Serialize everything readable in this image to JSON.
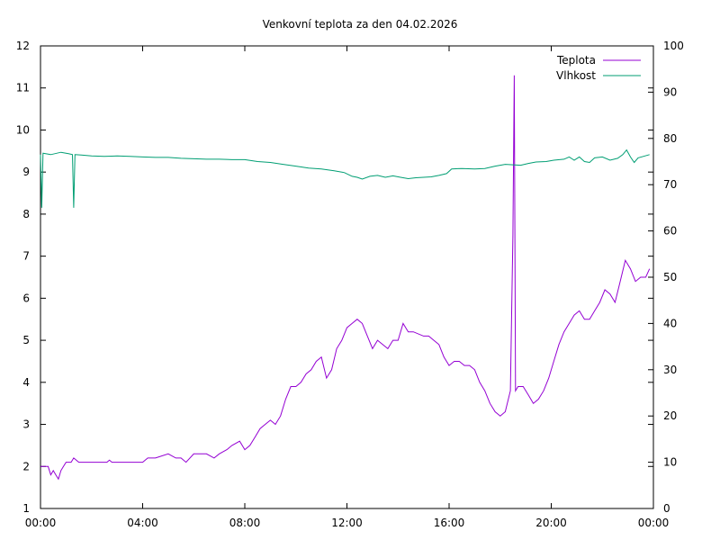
{
  "chart_data": {
    "type": "line",
    "title": "Venkovní teplota za den 04.02.2026",
    "xlabel": "",
    "ylabel": "",
    "y2label": "",
    "x_ticks": [
      "00:00",
      "04:00",
      "08:00",
      "12:00",
      "16:00",
      "20:00",
      "00:00"
    ],
    "xlim_hours": [
      0,
      24
    ],
    "ylim": [
      1,
      12
    ],
    "y_ticks": [
      1,
      2,
      3,
      4,
      5,
      6,
      7,
      8,
      9,
      10,
      11,
      12
    ],
    "y2lim": [
      0,
      100
    ],
    "y2_ticks": [
      0,
      10,
      20,
      30,
      40,
      50,
      60,
      70,
      80,
      90,
      100
    ],
    "grid": false,
    "legend_position": "top-right",
    "series": [
      {
        "name": "Teplota",
        "axis": "left",
        "color": "#9400d3",
        "points": [
          [
            0,
            2.0
          ],
          [
            0.3,
            2.0
          ],
          [
            0.4,
            1.8
          ],
          [
            0.5,
            1.9
          ],
          [
            0.6,
            1.8
          ],
          [
            0.7,
            1.7
          ],
          [
            0.8,
            1.9
          ],
          [
            0.9,
            2.0
          ],
          [
            1.0,
            2.1
          ],
          [
            1.2,
            2.1
          ],
          [
            1.3,
            2.2
          ],
          [
            1.5,
            2.1
          ],
          [
            2.0,
            2.1
          ],
          [
            2.6,
            2.1
          ],
          [
            2.7,
            2.15
          ],
          [
            2.8,
            2.1
          ],
          [
            3.0,
            2.1
          ],
          [
            3.5,
            2.1
          ],
          [
            4.0,
            2.1
          ],
          [
            4.2,
            2.2
          ],
          [
            4.5,
            2.2
          ],
          [
            5.0,
            2.3
          ],
          [
            5.3,
            2.2
          ],
          [
            5.5,
            2.2
          ],
          [
            5.7,
            2.1
          ],
          [
            6.0,
            2.3
          ],
          [
            6.5,
            2.3
          ],
          [
            6.8,
            2.2
          ],
          [
            7.0,
            2.3
          ],
          [
            7.3,
            2.4
          ],
          [
            7.5,
            2.5
          ],
          [
            7.8,
            2.6
          ],
          [
            8.0,
            2.4
          ],
          [
            8.2,
            2.5
          ],
          [
            8.4,
            2.7
          ],
          [
            8.6,
            2.9
          ],
          [
            8.8,
            3.0
          ],
          [
            9.0,
            3.1
          ],
          [
            9.2,
            3.0
          ],
          [
            9.4,
            3.2
          ],
          [
            9.6,
            3.6
          ],
          [
            9.8,
            3.9
          ],
          [
            10.0,
            3.9
          ],
          [
            10.2,
            4.0
          ],
          [
            10.4,
            4.2
          ],
          [
            10.6,
            4.3
          ],
          [
            10.8,
            4.5
          ],
          [
            11.0,
            4.6
          ],
          [
            11.2,
            4.1
          ],
          [
            11.4,
            4.3
          ],
          [
            11.6,
            4.8
          ],
          [
            11.8,
            5.0
          ],
          [
            12.0,
            5.3
          ],
          [
            12.2,
            5.4
          ],
          [
            12.4,
            5.5
          ],
          [
            12.6,
            5.4
          ],
          [
            12.8,
            5.1
          ],
          [
            13.0,
            4.8
          ],
          [
            13.2,
            5.0
          ],
          [
            13.4,
            4.9
          ],
          [
            13.6,
            4.8
          ],
          [
            13.8,
            5.0
          ],
          [
            14.0,
            5.0
          ],
          [
            14.2,
            5.4
          ],
          [
            14.4,
            5.2
          ],
          [
            14.6,
            5.2
          ],
          [
            15.0,
            5.1
          ],
          [
            15.2,
            5.1
          ],
          [
            15.4,
            5.0
          ],
          [
            15.6,
            4.9
          ],
          [
            15.8,
            4.6
          ],
          [
            16.0,
            4.4
          ],
          [
            16.2,
            4.5
          ],
          [
            16.4,
            4.5
          ],
          [
            16.6,
            4.4
          ],
          [
            16.8,
            4.4
          ],
          [
            17.0,
            4.3
          ],
          [
            17.2,
            4.0
          ],
          [
            17.4,
            3.8
          ],
          [
            17.6,
            3.5
          ],
          [
            17.8,
            3.3
          ],
          [
            18.0,
            3.2
          ],
          [
            18.2,
            3.3
          ],
          [
            18.4,
            3.8
          ],
          [
            18.5,
            7.5
          ],
          [
            18.55,
            11.3
          ],
          [
            18.6,
            3.8
          ],
          [
            18.7,
            3.9
          ],
          [
            18.9,
            3.9
          ],
          [
            19.1,
            3.7
          ],
          [
            19.3,
            3.5
          ],
          [
            19.5,
            3.6
          ],
          [
            19.7,
            3.8
          ],
          [
            19.9,
            4.1
          ],
          [
            20.1,
            4.5
          ],
          [
            20.3,
            4.9
          ],
          [
            20.5,
            5.2
          ],
          [
            20.7,
            5.4
          ],
          [
            20.9,
            5.6
          ],
          [
            21.1,
            5.7
          ],
          [
            21.3,
            5.5
          ],
          [
            21.5,
            5.5
          ],
          [
            21.7,
            5.7
          ],
          [
            21.9,
            5.9
          ],
          [
            22.1,
            6.2
          ],
          [
            22.3,
            6.1
          ],
          [
            22.5,
            5.9
          ],
          [
            22.7,
            6.4
          ],
          [
            22.9,
            6.9
          ],
          [
            23.1,
            6.7
          ],
          [
            23.3,
            6.4
          ],
          [
            23.5,
            6.5
          ],
          [
            23.7,
            6.5
          ],
          [
            23.85,
            6.7
          ]
        ]
      },
      {
        "name": "Vlhkost",
        "axis": "right",
        "color": "#009e73",
        "points": [
          [
            0,
            76.5
          ],
          [
            0.05,
            65.0
          ],
          [
            0.1,
            76.8
          ],
          [
            0.4,
            76.5
          ],
          [
            0.8,
            77.0
          ],
          [
            1.1,
            76.7
          ],
          [
            1.25,
            76.5
          ],
          [
            1.3,
            65.0
          ],
          [
            1.35,
            76.5
          ],
          [
            1.6,
            76.4
          ],
          [
            2.0,
            76.2
          ],
          [
            2.5,
            76.1
          ],
          [
            3.0,
            76.2
          ],
          [
            3.5,
            76.1
          ],
          [
            4.0,
            76.0
          ],
          [
            4.5,
            75.9
          ],
          [
            5.0,
            75.9
          ],
          [
            5.5,
            75.7
          ],
          [
            6.0,
            75.6
          ],
          [
            6.5,
            75.5
          ],
          [
            7.0,
            75.5
          ],
          [
            7.5,
            75.4
          ],
          [
            8.0,
            75.4
          ],
          [
            8.5,
            75.0
          ],
          [
            9.0,
            74.8
          ],
          [
            9.5,
            74.4
          ],
          [
            10.0,
            74.0
          ],
          [
            10.5,
            73.6
          ],
          [
            11.0,
            73.4
          ],
          [
            11.5,
            73.0
          ],
          [
            11.9,
            72.6
          ],
          [
            12.2,
            71.8
          ],
          [
            12.4,
            71.6
          ],
          [
            12.6,
            71.2
          ],
          [
            12.9,
            71.8
          ],
          [
            13.2,
            72.0
          ],
          [
            13.5,
            71.6
          ],
          [
            13.8,
            71.9
          ],
          [
            14.1,
            71.6
          ],
          [
            14.4,
            71.3
          ],
          [
            14.7,
            71.5
          ],
          [
            15.0,
            71.6
          ],
          [
            15.3,
            71.7
          ],
          [
            15.6,
            72.0
          ],
          [
            15.9,
            72.4
          ],
          [
            16.1,
            73.4
          ],
          [
            16.5,
            73.5
          ],
          [
            17.0,
            73.4
          ],
          [
            17.4,
            73.5
          ],
          [
            17.8,
            74.0
          ],
          [
            18.2,
            74.4
          ],
          [
            18.5,
            74.3
          ],
          [
            18.8,
            74.2
          ],
          [
            19.1,
            74.6
          ],
          [
            19.4,
            74.9
          ],
          [
            19.8,
            75.0
          ],
          [
            20.1,
            75.3
          ],
          [
            20.5,
            75.5
          ],
          [
            20.7,
            76.0
          ],
          [
            20.9,
            75.3
          ],
          [
            21.1,
            76.0
          ],
          [
            21.3,
            75.0
          ],
          [
            21.5,
            74.8
          ],
          [
            21.7,
            75.8
          ],
          [
            22.0,
            76.0
          ],
          [
            22.3,
            75.3
          ],
          [
            22.6,
            75.7
          ],
          [
            22.8,
            76.5
          ],
          [
            22.95,
            77.5
          ],
          [
            23.1,
            76.0
          ],
          [
            23.25,
            74.8
          ],
          [
            23.4,
            75.8
          ],
          [
            23.6,
            76.1
          ],
          [
            23.85,
            76.5
          ]
        ]
      }
    ]
  }
}
